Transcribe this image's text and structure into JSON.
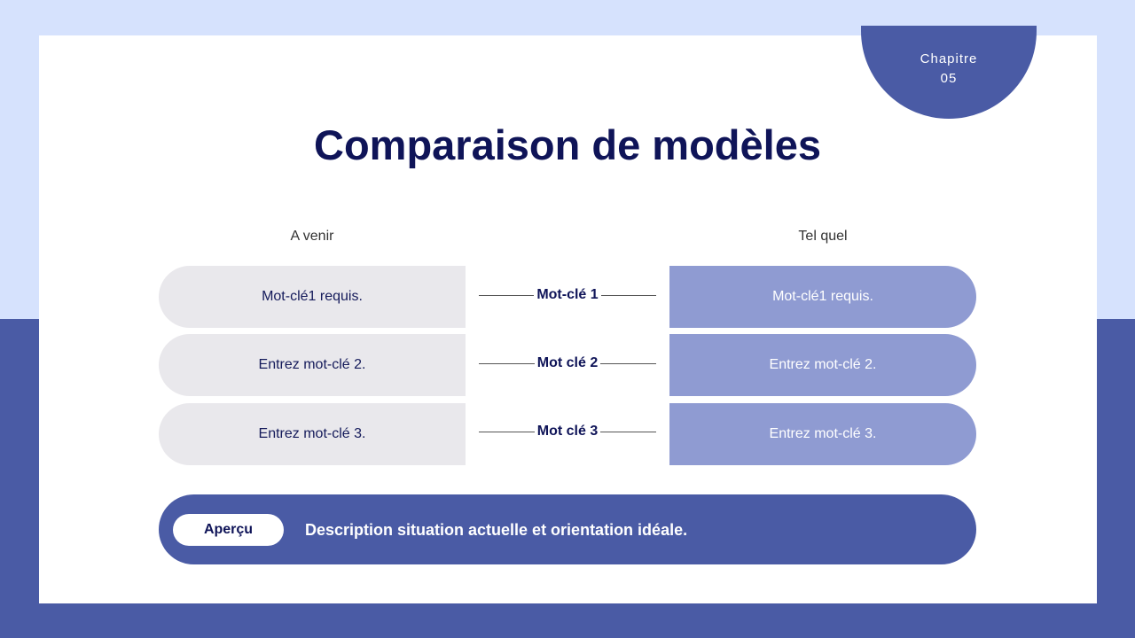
{
  "badge": {
    "line1": "Chapitre",
    "line2": "05"
  },
  "title": "Comparaison de modèles",
  "columns": {
    "left": "A venir",
    "right": "Tel quel"
  },
  "rows": [
    {
      "left": "Mot-clé1 requis.",
      "label": "Mot-clé 1",
      "right": "Mot-clé1 requis."
    },
    {
      "left": "Entrez mot-clé 2.",
      "label": "Mot clé 2",
      "right": "Entrez mot-clé 2."
    },
    {
      "left": "Entrez mot-clé 3.",
      "label": "Mot clé 3",
      "right": "Entrez mot-clé 3."
    }
  ],
  "summary": {
    "button": "Aperçu",
    "text": "Description situation actuelle et orientation idéale."
  },
  "colors": {
    "primary": "#4a5ba5",
    "light": "#d6e2fd",
    "accent": "#8f9bd2",
    "title": "#0f1458"
  }
}
